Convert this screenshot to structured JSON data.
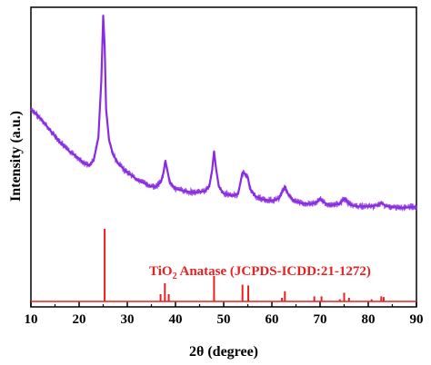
{
  "chart_data": {
    "type": "line",
    "xlabel": "2θ (degree)",
    "ylabel": "Intensity (a.u.)",
    "xlim": [
      10,
      90
    ],
    "xticks": [
      10,
      20,
      30,
      40,
      50,
      60,
      70,
      80,
      90
    ],
    "yticks_shown": false,
    "grid": false,
    "colors": {
      "pattern": "#8a2be2",
      "reference": "#e8201f",
      "axes": "#000000"
    },
    "pattern": {
      "x": [
        10,
        12,
        14,
        16,
        18,
        20,
        21,
        22,
        23,
        24,
        24.6,
        25.0,
        25.3,
        25.6,
        26.2,
        27,
        28,
        30,
        32,
        34,
        35,
        36,
        37,
        37.5,
        37.9,
        38.3,
        38.8,
        40,
        42,
        44,
        46,
        47,
        47.6,
        48.0,
        48.4,
        49,
        50,
        52,
        53,
        53.6,
        53.9,
        54.3,
        55.0,
        55.5,
        56.5,
        58,
        60,
        61.5,
        62.2,
        62.7,
        63.3,
        64.5,
        66,
        68,
        69,
        69.6,
        70.0,
        70.6,
        72,
        74,
        74.7,
        75.1,
        75.6,
        76.5,
        78,
        80,
        82,
        82.6,
        83.0,
        84,
        86,
        88,
        90
      ],
      "y": [
        0.58,
        0.54,
        0.49,
        0.44,
        0.4,
        0.37,
        0.35,
        0.34,
        0.36,
        0.46,
        0.7,
        0.98,
        0.85,
        0.58,
        0.45,
        0.39,
        0.35,
        0.31,
        0.28,
        0.26,
        0.25,
        0.25,
        0.27,
        0.31,
        0.36,
        0.32,
        0.27,
        0.24,
        0.23,
        0.225,
        0.23,
        0.25,
        0.32,
        0.4,
        0.33,
        0.25,
        0.22,
        0.21,
        0.22,
        0.28,
        0.31,
        0.305,
        0.29,
        0.24,
        0.21,
        0.195,
        0.19,
        0.2,
        0.23,
        0.25,
        0.22,
        0.19,
        0.18,
        0.175,
        0.18,
        0.19,
        0.2,
        0.185,
        0.17,
        0.175,
        0.19,
        0.2,
        0.185,
        0.17,
        0.165,
        0.165,
        0.17,
        0.18,
        0.175,
        0.165,
        0.16,
        0.16,
        0.165
      ]
    },
    "reference": {
      "label_main": "TiO",
      "label_sub": "2",
      "label_rest": " Anatase (JCPDS-ICDD:21-1272)",
      "peaks": [
        {
          "x": 25.3,
          "h": 1.0
        },
        {
          "x": 36.9,
          "h": 0.1
        },
        {
          "x": 37.8,
          "h": 0.25
        },
        {
          "x": 38.6,
          "h": 0.1
        },
        {
          "x": 48.0,
          "h": 0.35
        },
        {
          "x": 53.9,
          "h": 0.23
        },
        {
          "x": 55.1,
          "h": 0.22
        },
        {
          "x": 62.1,
          "h": 0.05
        },
        {
          "x": 62.7,
          "h": 0.14
        },
        {
          "x": 68.8,
          "h": 0.07
        },
        {
          "x": 70.3,
          "h": 0.07
        },
        {
          "x": 74.1,
          "h": 0.03
        },
        {
          "x": 75.0,
          "h": 0.12
        },
        {
          "x": 76.0,
          "h": 0.05
        },
        {
          "x": 80.7,
          "h": 0.03
        },
        {
          "x": 82.7,
          "h": 0.07
        },
        {
          "x": 83.2,
          "h": 0.06
        }
      ]
    }
  }
}
